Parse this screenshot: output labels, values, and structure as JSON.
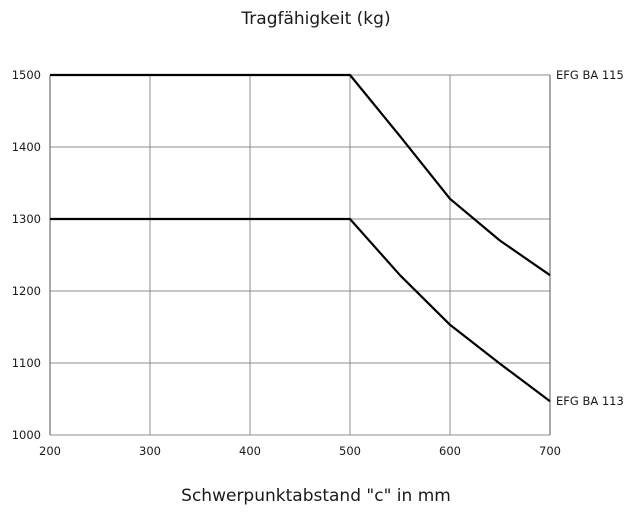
{
  "chart_data": {
    "type": "line",
    "title": "Tragfähigkeit (kg)",
    "xlabel": "Schwerpunktabstand \"c\" in mm",
    "ylabel": "",
    "xlim": [
      200,
      700
    ],
    "ylim": [
      1000,
      1500
    ],
    "x_ticks": [
      "200",
      "300",
      "400",
      "500",
      "600",
      "700"
    ],
    "y_ticks": [
      "1000",
      "1100",
      "1200",
      "1300",
      "1400",
      "1500"
    ],
    "grid": true,
    "series": [
      {
        "name": "EFG BA 115",
        "points": [
          [
            200,
            1500
          ],
          [
            500,
            1500
          ],
          [
            550,
            1415
          ],
          [
            600,
            1328
          ],
          [
            650,
            1270
          ],
          [
            700,
            1222
          ]
        ]
      },
      {
        "name": "EFG BA 113",
        "points": [
          [
            200,
            1300
          ],
          [
            500,
            1300
          ],
          [
            550,
            1222
          ],
          [
            600,
            1153
          ],
          [
            650,
            1099
          ],
          [
            700,
            1047
          ]
        ]
      }
    ]
  }
}
